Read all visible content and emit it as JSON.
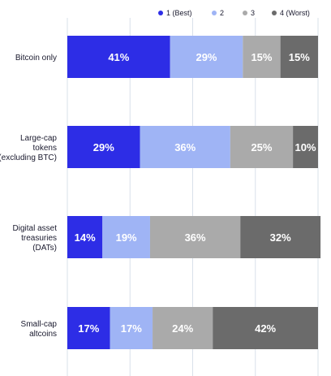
{
  "chart_data": {
    "type": "bar",
    "orientation": "horizontal",
    "stacked": true,
    "title": "",
    "xlabel": "",
    "ylabel": "",
    "xlim": [
      0,
      100
    ],
    "grid": true,
    "legend_position": "top-right",
    "value_suffix": "%",
    "categories": [
      "Bitcoin only",
      "Large-cap tokens (excluding BTC)",
      "Digital asset treasuries (DATs)",
      "Small-cap altcoins"
    ],
    "category_lines": [
      [
        "Bitcoin only"
      ],
      [
        "Large-cap",
        "tokens",
        "(excluding BTC)"
      ],
      [
        "Digital asset",
        "treasuries",
        "(DATs)"
      ],
      [
        "Small-cap",
        "altcoins"
      ]
    ],
    "series": [
      {
        "name": "1 (Best)",
        "color": "#2d2de6",
        "label_color": "#ffffff",
        "values": [
          41,
          29,
          14,
          17
        ]
      },
      {
        "name": "2",
        "color": "#9fb4f5",
        "label_color": "#ffffff",
        "values": [
          29,
          36,
          19,
          17
        ]
      },
      {
        "name": "3",
        "color": "#aaaaaa",
        "label_color": "#ffffff",
        "values": [
          15,
          25,
          36,
          24
        ]
      },
      {
        "name": "4 (Worst)",
        "color": "#6b6b6b",
        "label_color": "#ffffff",
        "values": [
          15,
          10,
          32,
          42
        ]
      }
    ],
    "colors": {
      "grid": "#d9e0ea",
      "axis_label": "#1a1a2e"
    }
  }
}
